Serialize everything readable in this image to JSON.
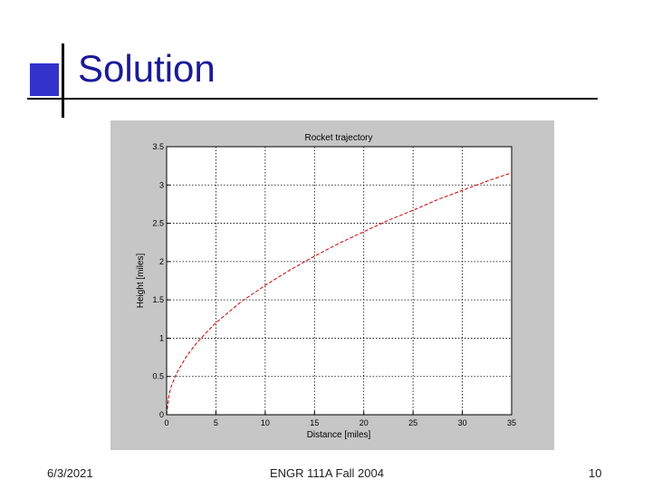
{
  "slide": {
    "title": "Solution",
    "footer": {
      "date": "6/3/2021",
      "course": "ENGR 111A  Fall 2004",
      "page": "10"
    }
  },
  "colors": {
    "accent": "#3333cc",
    "title": "#1a1a99",
    "figure_bg": "#c6c6c6",
    "curve": "#cc0000"
  },
  "chart_data": {
    "type": "line",
    "title": "Rocket trajectory",
    "xlabel": "Distance  [miles]",
    "ylabel": "Height  [miles]",
    "xlim": [
      0,
      35
    ],
    "ylim": [
      0,
      3.5
    ],
    "xticks": [
      0,
      5,
      10,
      15,
      20,
      25,
      30,
      35
    ],
    "xtick_labels": [
      "0",
      "5",
      "10",
      "15",
      "20",
      "25",
      "30",
      "35"
    ],
    "yticks": [
      0,
      0.5,
      1,
      1.5,
      2,
      2.5,
      3,
      3.5
    ],
    "ytick_labels": [
      "0",
      "0.5",
      "1",
      "1.5",
      "2",
      "2.5",
      "3",
      "3.5"
    ],
    "grid": true,
    "series": [
      {
        "line_style": "dashed",
        "color": "#cc0000",
        "x": [
          0,
          0.25,
          0.5,
          1,
          2,
          3,
          4,
          5,
          7.5,
          10,
          12.5,
          15,
          17.5,
          20,
          22.5,
          25,
          27.5,
          30,
          32.5,
          35
        ],
        "y": [
          0,
          0.27,
          0.38,
          0.54,
          0.76,
          0.93,
          1.07,
          1.2,
          1.47,
          1.69,
          1.89,
          2.07,
          2.24,
          2.39,
          2.54,
          2.67,
          2.81,
          2.93,
          3.05,
          3.16
        ]
      }
    ]
  }
}
